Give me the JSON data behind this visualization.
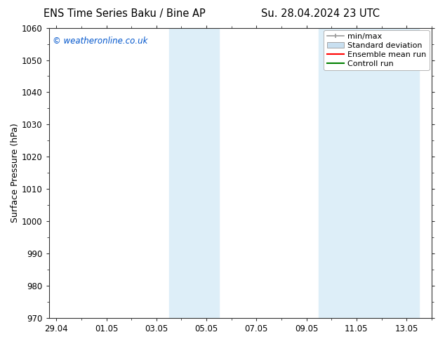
{
  "title_left": "ENS Time Series Baku / Bine AP",
  "title_right": "Su. 28.04.2024 23 UTC",
  "ylabel": "Surface Pressure (hPa)",
  "watermark": "© weatheronline.co.uk",
  "watermark_color": "#0055cc",
  "ylim_bottom": 970,
  "ylim_top": 1060,
  "yticks": [
    970,
    980,
    990,
    1000,
    1010,
    1020,
    1030,
    1040,
    1050,
    1060
  ],
  "xtick_labels": [
    "29.04",
    "01.05",
    "03.05",
    "05.05",
    "07.05",
    "09.05",
    "11.05",
    "13.05"
  ],
  "xtick_positions": [
    0,
    2,
    4,
    6,
    8,
    10,
    12,
    14
  ],
  "xlim_left": -0.3,
  "xlim_right": 15.0,
  "background_color": "#ffffff",
  "plot_bg_color": "#ffffff",
  "shaded_regions": [
    {
      "x_start": 4.5,
      "x_end": 6.5,
      "color": "#ddeef8"
    },
    {
      "x_start": 10.5,
      "x_end": 14.5,
      "color": "#ddeef8"
    }
  ],
  "legend_labels": [
    "min/max",
    "Standard deviation",
    "Ensemble mean run",
    "Controll run"
  ],
  "minmax_color": "#999999",
  "std_facecolor": "#c8dff0",
  "ens_color": "#ff0000",
  "ctrl_color": "#008000",
  "title_fontsize": 10.5,
  "axis_fontsize": 9,
  "tick_fontsize": 8.5,
  "legend_fontsize": 8
}
